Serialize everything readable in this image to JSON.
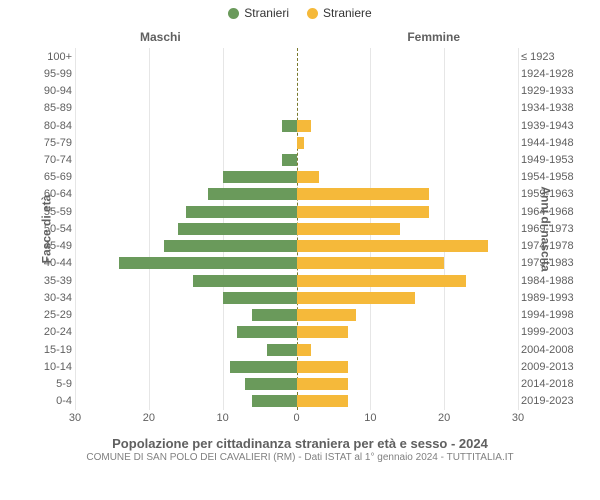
{
  "legend": {
    "male_label": "Stranieri",
    "female_label": "Straniere",
    "male_color": "#6a9a5b",
    "female_color": "#f5b93a"
  },
  "chart": {
    "type": "population-pyramid",
    "left_title": "Maschi",
    "right_title": "Femmine",
    "left_axis_title": "Fasce di età",
    "right_axis_title": "Anni di nascita",
    "x_max": 30,
    "x_ticks": [
      30,
      20,
      10,
      0,
      10,
      20,
      30
    ],
    "grid_color": "#e6e6e6",
    "center_line_color": "#7a7a2e",
    "background_color": "#ffffff",
    "label_fontsize": 11,
    "axis_label_fontsize": 12,
    "bar_colors": {
      "male": "#6a9a5b",
      "female": "#f5b93a"
    },
    "age_groups": [
      {
        "age": "100+",
        "birth": "≤ 1923",
        "male": 0,
        "female": 0
      },
      {
        "age": "95-99",
        "birth": "1924-1928",
        "male": 0,
        "female": 0
      },
      {
        "age": "90-94",
        "birth": "1929-1933",
        "male": 0,
        "female": 0
      },
      {
        "age": "85-89",
        "birth": "1934-1938",
        "male": 0,
        "female": 0
      },
      {
        "age": "80-84",
        "birth": "1939-1943",
        "male": 2,
        "female": 2
      },
      {
        "age": "75-79",
        "birth": "1944-1948",
        "male": 0,
        "female": 1
      },
      {
        "age": "70-74",
        "birth": "1949-1953",
        "male": 2,
        "female": 0
      },
      {
        "age": "65-69",
        "birth": "1954-1958",
        "male": 10,
        "female": 3
      },
      {
        "age": "60-64",
        "birth": "1959-1963",
        "male": 12,
        "female": 18
      },
      {
        "age": "55-59",
        "birth": "1964-1968",
        "male": 15,
        "female": 18
      },
      {
        "age": "50-54",
        "birth": "1969-1973",
        "male": 16,
        "female": 14
      },
      {
        "age": "45-49",
        "birth": "1974-1978",
        "male": 18,
        "female": 26
      },
      {
        "age": "40-44",
        "birth": "1979-1983",
        "male": 24,
        "female": 20
      },
      {
        "age": "35-39",
        "birth": "1984-1988",
        "male": 14,
        "female": 23
      },
      {
        "age": "30-34",
        "birth": "1989-1993",
        "male": 10,
        "female": 16
      },
      {
        "age": "25-29",
        "birth": "1994-1998",
        "male": 6,
        "female": 8
      },
      {
        "age": "20-24",
        "birth": "1999-2003",
        "male": 8,
        "female": 7
      },
      {
        "age": "15-19",
        "birth": "2004-2008",
        "male": 4,
        "female": 2
      },
      {
        "age": "10-14",
        "birth": "2009-2013",
        "male": 9,
        "female": 7
      },
      {
        "age": "5-9",
        "birth": "2014-2018",
        "male": 7,
        "female": 7
      },
      {
        "age": "0-4",
        "birth": "2019-2023",
        "male": 6,
        "female": 7
      }
    ]
  },
  "footer": {
    "title": "Popolazione per cittadinanza straniera per età e sesso - 2024",
    "subtitle": "COMUNE DI SAN POLO DEI CAVALIERI (RM) - Dati ISTAT al 1° gennaio 2024 - TUTTITALIA.IT"
  }
}
